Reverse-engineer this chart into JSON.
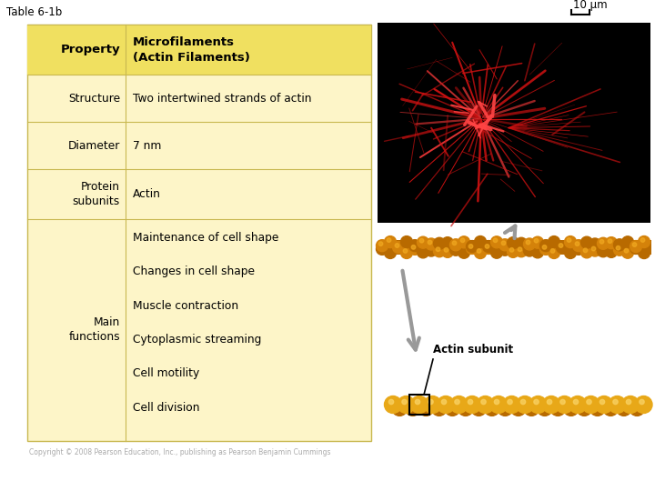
{
  "title": "Table 6-1b",
  "background_color": "#ffffff",
  "table_bg": "#fdf5c8",
  "table_header_bg": "#f0e060",
  "table_border_color": "#c8b850",
  "col1_header": "Property",
  "col2_header": "Microfilaments\n(Actin Filaments)",
  "rows": [
    [
      "Structure",
      "Two intertwined strands of actin"
    ],
    [
      "Diameter",
      "7 nm"
    ],
    [
      "Protein\nsubunits",
      "Actin"
    ],
    [
      "Main\nfunctions",
      "Maintenance of cell shape\nChanges in cell shape\nMuscle contraction\nCytoplasmic streaming\nCell motility\nCell division"
    ]
  ],
  "scale_bar_label": "10 μm",
  "actin_subunit_label": "Actin subunit",
  "diameter_label": "7 nm",
  "copyright": "Copyright © 2008 Pearson Education, Inc., publishing as Pearson Benjamin Cummings",
  "strand_color": "#d4820a",
  "strand_dark": "#b86a00",
  "strand_light": "#f0a820",
  "bead_color": "#e8a818",
  "bead_highlight": "#f8d060",
  "photo_bg": "#000000",
  "cell_color": "#cc1111",
  "arrow_color": "#888888"
}
